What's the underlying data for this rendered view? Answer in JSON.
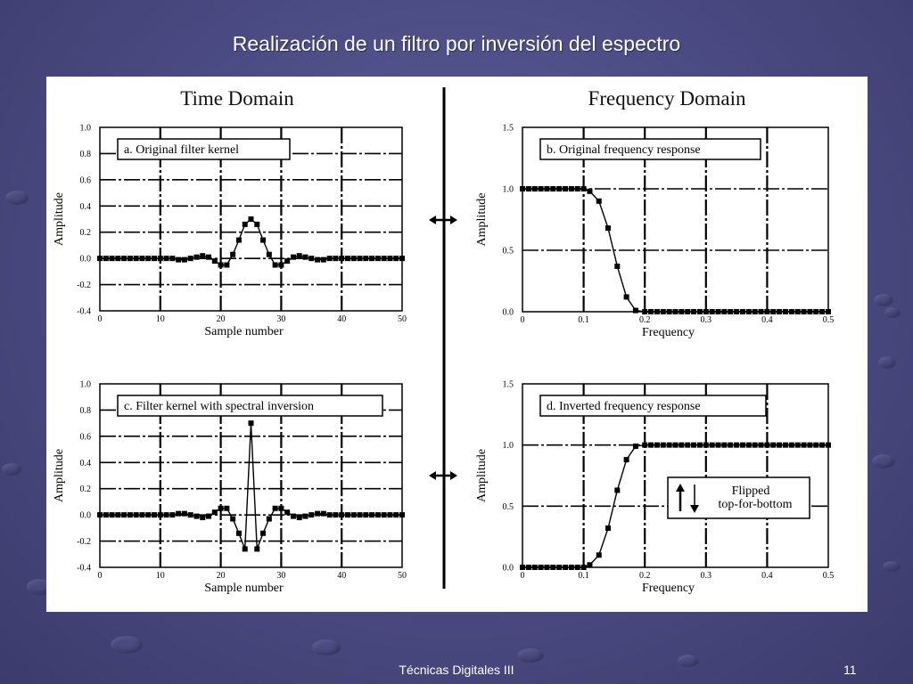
{
  "slide": {
    "title": "Realización de un filtro por inversión del espectro",
    "footer": "Técnicas Digitales III",
    "page_number": "11"
  },
  "figure": {
    "left_heading": "Time Domain",
    "right_heading": "Frequency Domain",
    "flip_note_line1": "Flipped",
    "flip_note_line2": "top-for-bottom"
  },
  "chart_data": [
    {
      "id": "a",
      "type": "line",
      "title": "a.  Original filter kernel",
      "xlabel": "Sample number",
      "ylabel": "Amplitude",
      "xlim": [
        0,
        50
      ],
      "ylim": [
        -0.4,
        1.0
      ],
      "xticks": [
        "0",
        "10",
        "20",
        "30",
        "40",
        "50"
      ],
      "yticks": [
        "-0.4",
        "-0.2",
        "0.0",
        "0.2",
        "0.4",
        "0.6",
        "0.8",
        "1.0"
      ],
      "grid": true,
      "markers": true,
      "x": [
        0,
        1,
        2,
        3,
        4,
        5,
        6,
        7,
        8,
        9,
        10,
        11,
        12,
        13,
        14,
        15,
        16,
        17,
        18,
        19,
        20,
        21,
        22,
        23,
        24,
        25,
        26,
        27,
        28,
        29,
        30,
        31,
        32,
        33,
        34,
        35,
        36,
        37,
        38,
        39,
        40,
        41,
        42,
        43,
        44,
        45,
        46,
        47,
        48,
        49,
        50
      ],
      "y": [
        0.0,
        0.0,
        0.0,
        0.0,
        0.0,
        0.0,
        0.0,
        0.0,
        0.0,
        0.0,
        0.0,
        0.0,
        0.0,
        -0.01,
        -0.01,
        0.0,
        0.01,
        0.02,
        0.01,
        -0.02,
        -0.05,
        -0.05,
        0.03,
        0.14,
        0.26,
        0.3,
        0.26,
        0.14,
        0.03,
        -0.05,
        -0.05,
        -0.02,
        0.01,
        0.02,
        0.01,
        0.0,
        -0.01,
        -0.01,
        0.0,
        0.0,
        0.0,
        0.0,
        0.0,
        0.0,
        0.0,
        0.0,
        0.0,
        0.0,
        0.0,
        0.0,
        0.0
      ]
    },
    {
      "id": "b",
      "type": "line",
      "title": "b.  Original frequency response",
      "xlabel": "Frequency",
      "ylabel": "Amplitude",
      "xlim": [
        0,
        0.5
      ],
      "ylim": [
        0,
        1.5
      ],
      "xticks": [
        "0",
        "0.1",
        "0.2",
        "0.3",
        "0.4",
        "0.5"
      ],
      "yticks": [
        "0.0",
        "0.5",
        "1.0",
        "1.5"
      ],
      "grid": true,
      "markers": true,
      "x": [
        0,
        0.01,
        0.02,
        0.03,
        0.04,
        0.05,
        0.06,
        0.07,
        0.08,
        0.09,
        0.1,
        0.11,
        0.125,
        0.14,
        0.155,
        0.17,
        0.185,
        0.2,
        0.21,
        0.22,
        0.23,
        0.24,
        0.25,
        0.26,
        0.27,
        0.28,
        0.29,
        0.3,
        0.31,
        0.32,
        0.33,
        0.34,
        0.35,
        0.36,
        0.37,
        0.38,
        0.39,
        0.4,
        0.41,
        0.42,
        0.43,
        0.44,
        0.45,
        0.46,
        0.47,
        0.48,
        0.49,
        0.5
      ],
      "y": [
        1.0,
        1.0,
        1.0,
        1.0,
        1.0,
        1.0,
        1.0,
        1.0,
        1.0,
        1.0,
        1.0,
        0.98,
        0.9,
        0.68,
        0.37,
        0.12,
        0.01,
        0.0,
        0.0,
        0.0,
        0.0,
        0.0,
        0.0,
        0.0,
        0.0,
        0.0,
        0.0,
        0.0,
        0.0,
        0.0,
        0.0,
        0.0,
        0.0,
        0.0,
        0.0,
        0.0,
        0.0,
        0.0,
        0.0,
        0.0,
        0.0,
        0.0,
        0.0,
        0.0,
        0.0,
        0.0,
        0.0,
        0.0
      ]
    },
    {
      "id": "c",
      "type": "line",
      "title": "c.  Filter kernel with spectral inversion",
      "xlabel": "Sample number",
      "ylabel": "Amplitude",
      "xlim": [
        0,
        50
      ],
      "ylim": [
        -0.4,
        1.0
      ],
      "xticks": [
        "0",
        "10",
        "20",
        "30",
        "40",
        "50"
      ],
      "yticks": [
        "-0.4",
        "-0.2",
        "0.0",
        "0.2",
        "0.4",
        "0.6",
        "0.8",
        "1.0"
      ],
      "grid": true,
      "markers": true,
      "x": [
        0,
        1,
        2,
        3,
        4,
        5,
        6,
        7,
        8,
        9,
        10,
        11,
        12,
        13,
        14,
        15,
        16,
        17,
        18,
        19,
        20,
        21,
        22,
        23,
        24,
        25,
        26,
        27,
        28,
        29,
        30,
        31,
        32,
        33,
        34,
        35,
        36,
        37,
        38,
        39,
        40,
        41,
        42,
        43,
        44,
        45,
        46,
        47,
        48,
        49,
        50
      ],
      "y": [
        0.0,
        0.0,
        0.0,
        0.0,
        0.0,
        0.0,
        0.0,
        0.0,
        0.0,
        0.0,
        0.0,
        0.0,
        0.0,
        0.01,
        0.01,
        0.0,
        -0.01,
        -0.02,
        -0.01,
        0.02,
        0.05,
        0.05,
        -0.03,
        -0.14,
        -0.26,
        0.7,
        -0.26,
        -0.14,
        -0.03,
        0.05,
        0.05,
        0.02,
        -0.01,
        -0.02,
        -0.01,
        0.0,
        0.01,
        0.01,
        0.0,
        0.0,
        0.0,
        0.0,
        0.0,
        0.0,
        0.0,
        0.0,
        0.0,
        0.0,
        0.0,
        0.0,
        0.0
      ]
    },
    {
      "id": "d",
      "type": "line",
      "title": "d.  Inverted frequency response",
      "xlabel": "Frequency",
      "ylabel": "Amplitude",
      "xlim": [
        0,
        0.5
      ],
      "ylim": [
        0,
        1.5
      ],
      "xticks": [
        "0",
        "0.1",
        "0.2",
        "0.3",
        "0.4",
        "0.5"
      ],
      "yticks": [
        "0.0",
        "0.5",
        "1.0",
        "1.5"
      ],
      "grid": true,
      "markers": true,
      "x": [
        0,
        0.01,
        0.02,
        0.03,
        0.04,
        0.05,
        0.06,
        0.07,
        0.08,
        0.09,
        0.1,
        0.11,
        0.125,
        0.14,
        0.155,
        0.17,
        0.185,
        0.2,
        0.21,
        0.22,
        0.23,
        0.24,
        0.25,
        0.26,
        0.27,
        0.28,
        0.29,
        0.3,
        0.31,
        0.32,
        0.33,
        0.34,
        0.35,
        0.36,
        0.37,
        0.38,
        0.39,
        0.4,
        0.41,
        0.42,
        0.43,
        0.44,
        0.45,
        0.46,
        0.47,
        0.48,
        0.49,
        0.5
      ],
      "y": [
        0.0,
        0.0,
        0.0,
        0.0,
        0.0,
        0.0,
        0.0,
        0.0,
        0.0,
        0.0,
        0.0,
        0.02,
        0.1,
        0.32,
        0.63,
        0.88,
        0.99,
        1.0,
        1.0,
        1.0,
        1.0,
        1.0,
        1.0,
        1.0,
        1.0,
        1.0,
        1.0,
        1.0,
        1.0,
        1.0,
        1.0,
        1.0,
        1.0,
        1.0,
        1.0,
        1.0,
        1.0,
        1.0,
        1.0,
        1.0,
        1.0,
        1.0,
        1.0,
        1.0,
        1.0,
        1.0,
        1.0,
        1.0
      ]
    }
  ]
}
